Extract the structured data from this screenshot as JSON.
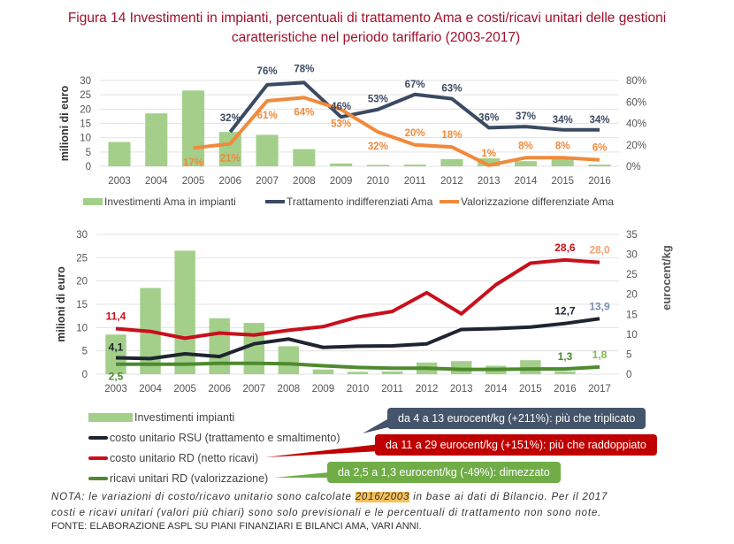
{
  "title": {
    "line1": "Figura 14 Investimenti in impianti, percentuali di trattamento Ama e costi/ricavi unitari delle gestioni",
    "line2": "caratteristiche nel periodo tariffario (2003-2017)"
  },
  "colors": {
    "bars": "#a3cf8a",
    "navy": "#3b4a63",
    "orange": "#f08a3c",
    "red": "#c8101c",
    "black": "#1f2530",
    "green": "#4e8a2e"
  },
  "chart_data": [
    {
      "type": "bar+line",
      "ylabel": "milioni di euro",
      "ylim": [
        0,
        30
      ],
      "yticks": [
        "0",
        "5",
        "10",
        "15",
        "20",
        "25",
        "30"
      ],
      "y2lim": [
        0,
        80
      ],
      "y2ticks": [
        "0%",
        "20%",
        "40%",
        "60%",
        "80%"
      ],
      "categories": [
        "2003",
        "2004",
        "2005",
        "2006",
        "2007",
        "2008",
        "2009",
        "2010",
        "2011",
        "2012",
        "2013",
        "2014",
        "2015",
        "2016"
      ],
      "series": [
        {
          "name": "Investimenti Ama in impianti",
          "kind": "bar",
          "values": [
            8.5,
            18.5,
            26.5,
            12,
            11,
            6,
            1,
            0.5,
            0.6,
            2.5,
            2.8,
            1.8,
            3,
            0.6
          ]
        },
        {
          "name": "Trattamento indifferenziati Ama",
          "kind": "line",
          "axis": "right",
          "values": [
            null,
            null,
            null,
            32,
            76,
            78,
            46,
            53,
            67,
            63,
            36,
            37,
            34,
            34
          ]
        },
        {
          "name": "Valorizzazione differenziate Ama",
          "kind": "line",
          "axis": "right",
          "values": [
            null,
            null,
            17,
            21,
            61,
            64,
            53,
            32,
            20,
            18,
            1,
            8,
            8,
            6
          ]
        }
      ]
    },
    {
      "type": "bar+line",
      "ylabel": "milioni di euro",
      "ylim": [
        0,
        30
      ],
      "yticks": [
        "0",
        "5",
        "10",
        "15",
        "20",
        "25",
        "30"
      ],
      "y2label": "eurocent/kg",
      "y2lim": [
        0,
        35
      ],
      "y2ticks": [
        "0",
        "5",
        "10",
        "15",
        "20",
        "25",
        "30",
        "35"
      ],
      "categories": [
        "2003",
        "2004",
        "2005",
        "2006",
        "2007",
        "2008",
        "2009",
        "2010",
        "2011",
        "2012",
        "2013",
        "2014",
        "2015",
        "2016",
        "2017"
      ],
      "series": [
        {
          "name": "Investimenti impianti",
          "kind": "bar",
          "values": [
            8.5,
            18.5,
            26.5,
            12,
            11,
            6,
            1,
            0.5,
            0.6,
            2.5,
            2.8,
            1.8,
            3,
            0.6,
            null
          ]
        },
        {
          "name": "costo unitario RSU (trattamento e smaltimento)",
          "kind": "line",
          "axis": "right",
          "values": [
            4.1,
            3.9,
            5.1,
            4.4,
            7.6,
            8.8,
            6.7,
            7,
            7.1,
            7.6,
            11.2,
            11.4,
            11.8,
            12.7,
            13.9
          ]
        },
        {
          "name": "costo unitario RD (netto ricavi)",
          "kind": "line",
          "axis": "right",
          "values": [
            11.4,
            10.7,
            9,
            10.3,
            9.8,
            11,
            11.9,
            14.3,
            15.7,
            20.4,
            15.1,
            22.4,
            27.8,
            28.6,
            28.0
          ]
        },
        {
          "name": "ricavi unitari RD (valorizzazione)",
          "kind": "line",
          "axis": "right",
          "values": [
            2.5,
            2.5,
            2.5,
            2.7,
            2.7,
            2.6,
            2.1,
            1.7,
            1.5,
            1.5,
            1.2,
            1.2,
            1.3,
            1.3,
            1.8
          ]
        }
      ],
      "data_labels": [
        {
          "series": 1,
          "i": 0,
          "text": "4,1"
        },
        {
          "series": 1,
          "i": 13,
          "text": "12,7"
        },
        {
          "series": 1,
          "i": 14,
          "text": "13,9"
        },
        {
          "series": 2,
          "i": 0,
          "text": "11,4"
        },
        {
          "series": 2,
          "i": 13,
          "text": "28,6"
        },
        {
          "series": 2,
          "i": 14,
          "text": "28,0"
        },
        {
          "series": 3,
          "i": 0,
          "text": "2,5"
        },
        {
          "series": 3,
          "i": 13,
          "text": "1,3"
        },
        {
          "series": 3,
          "i": 14,
          "text": "1,8"
        }
      ]
    }
  ],
  "callouts": [
    "da 4 a 13 eurocent/kg (+211%): più che triplicato",
    "da 11 a 29 eurocent/kg (+151%):  più che raddoppiato",
    "da 2,5 a 1,3 eurocent/kg (-49%): dimezzato"
  ],
  "note": {
    "a": "NOTA: le variazioni di costo/ricavo unitario sono calcolate ",
    "hl": "2016/2003",
    "b": " in base ai dati di Bilancio. Per il 2017",
    "line2": "costi e ricavi unitari (valori più chiari) sono solo previsionali e le percentuali di trattamento non sono note."
  },
  "source": "FONTE: ELABORAZIONE ASPL SU PIANI FINANZIARI E BILANCI AMA, VARI ANNI."
}
